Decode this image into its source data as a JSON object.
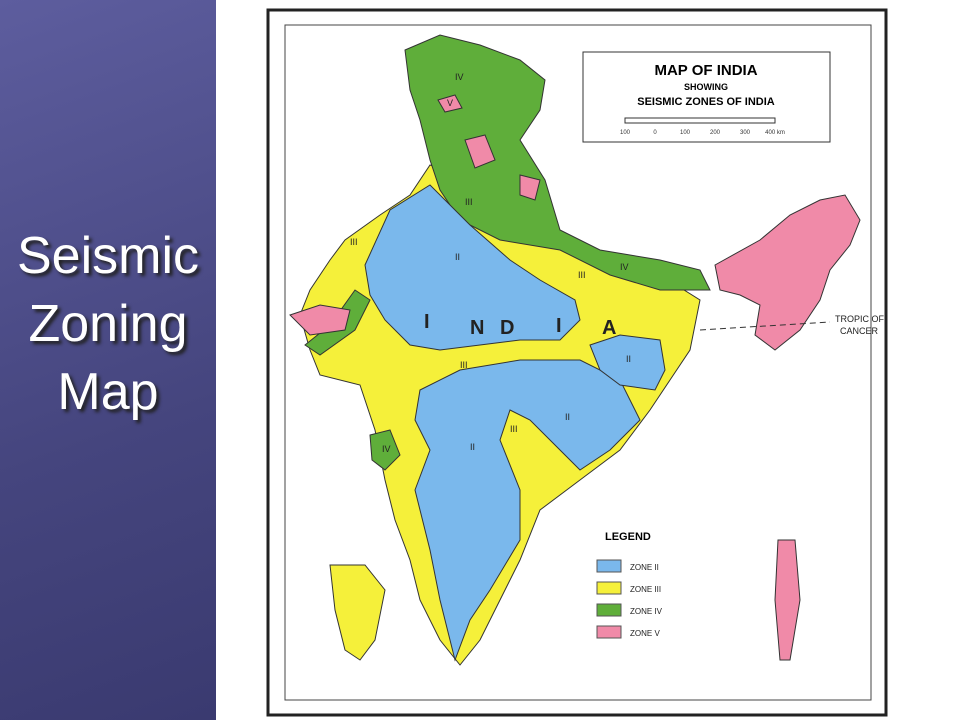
{
  "slide": {
    "title_lines": [
      "Seismic",
      "Zoning",
      "Map"
    ]
  },
  "map": {
    "title": "MAP OF INDIA",
    "subtitle": "SHOWING",
    "heading": "SEISMIC ZONES OF INDIA",
    "scale_labels": [
      "100",
      "0",
      "100",
      "200",
      "300",
      "400 km"
    ],
    "country_letters": [
      "I",
      "N",
      "D",
      "I",
      "A"
    ],
    "tropic_label": [
      "TROPIC OF",
      "CANCER"
    ],
    "zone_labels": [
      "IV",
      "V",
      "III",
      "II",
      "III",
      "II",
      "III",
      "II",
      "II",
      "III",
      "IV",
      "IV",
      "III"
    ]
  },
  "legend": {
    "title": "LEGEND",
    "items": [
      {
        "label": "ZONE II",
        "color": "#7ab8ec"
      },
      {
        "label": "ZONE III",
        "color": "#f5f03a"
      },
      {
        "label": "ZONE IV",
        "color": "#5fae3a"
      },
      {
        "label": "ZONE V",
        "color": "#f08aa8"
      }
    ]
  }
}
